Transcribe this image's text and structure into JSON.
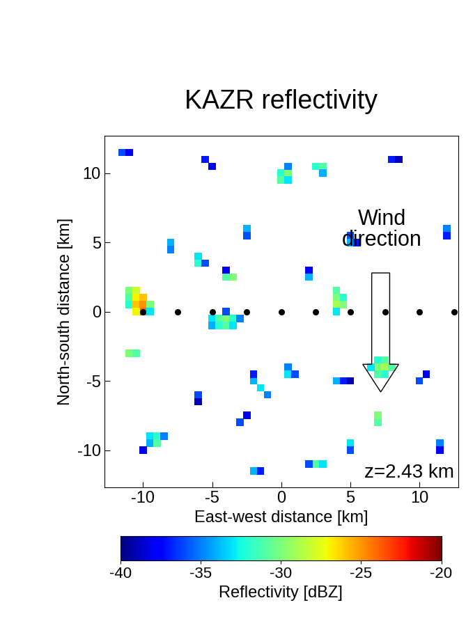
{
  "chart_data": {
    "type": "heatmap",
    "title": "KAZR reflectivity",
    "x_label": "East-west distance [km]",
    "y_label": "North-south distance [km]",
    "xlim": [
      -12.8,
      12.8
    ],
    "ylim": [
      -12.7,
      12.7
    ],
    "xticks": [
      -10,
      -5,
      0,
      5,
      10
    ],
    "yticks": [
      -10,
      -5,
      0,
      5,
      10
    ],
    "marker": "square",
    "cells": [
      [
        -11,
        1.5,
        -30
      ],
      [
        -10.5,
        1.5,
        -28
      ],
      [
        -11,
        1,
        -31
      ],
      [
        -10.5,
        1,
        -27
      ],
      [
        -10,
        1,
        -26
      ],
      [
        -11,
        0.5,
        -32
      ],
      [
        -10.5,
        0.5,
        -26
      ],
      [
        -10,
        0.5,
        -25
      ],
      [
        -10,
        0,
        -24
      ],
      [
        -10.5,
        0,
        -27
      ],
      [
        -9.5,
        0.5,
        -30
      ],
      [
        -9.5,
        0,
        -33
      ],
      [
        -5,
        -0.5,
        -33
      ],
      [
        -4.5,
        -0.5,
        -31
      ],
      [
        -4,
        -0.5,
        -30
      ],
      [
        -3.5,
        -0.5,
        -32
      ],
      [
        -3,
        -0.5,
        -35
      ],
      [
        -5,
        -1,
        -34
      ],
      [
        -4.5,
        -1,
        -32
      ],
      [
        -4,
        -1,
        -31
      ],
      [
        -3.5,
        -1,
        -33
      ],
      [
        -4,
        0,
        -36
      ],
      [
        4,
        1.5,
        -31
      ],
      [
        4,
        1,
        -30
      ],
      [
        4,
        0.5,
        -29
      ],
      [
        4.5,
        1,
        -32
      ],
      [
        4.5,
        0.5,
        -30
      ],
      [
        4,
        0,
        -33
      ],
      [
        7,
        -3.5,
        -32
      ],
      [
        7.5,
        -3.5,
        -31
      ],
      [
        7,
        -4,
        -30
      ],
      [
        7.5,
        -4,
        -29
      ],
      [
        8,
        -4,
        -31
      ],
      [
        7,
        -4.5,
        -31
      ],
      [
        7.5,
        -4.5,
        -32
      ],
      [
        6.5,
        -4,
        -33
      ],
      [
        -9.5,
        -9,
        -33
      ],
      [
        -9,
        -9,
        -32
      ],
      [
        -9.5,
        -9.5,
        -34
      ],
      [
        -9,
        -9.5,
        -31
      ],
      [
        -8.5,
        -9,
        -35
      ],
      [
        -10,
        -10,
        -38
      ],
      [
        0,
        10,
        -32
      ],
      [
        0.5,
        10,
        -30
      ],
      [
        0,
        9.5,
        -31
      ],
      [
        0.5,
        9.5,
        -33
      ],
      [
        0.5,
        10.5,
        -35
      ],
      [
        2.5,
        10.5,
        -32
      ],
      [
        3,
        10.5,
        -31
      ],
      [
        3,
        10,
        -34
      ],
      [
        -6,
        4,
        -33
      ],
      [
        -6,
        3.5,
        -32
      ],
      [
        -5.5,
        3.5,
        -36
      ],
      [
        -3.5,
        2.5,
        -30
      ],
      [
        -4,
        2.5,
        -31
      ],
      [
        -4,
        3,
        -38
      ],
      [
        -2,
        -5,
        -34
      ],
      [
        -1.5,
        -5.5,
        -33
      ],
      [
        -1,
        -6,
        -35
      ],
      [
        -2,
        -4.5,
        -37
      ],
      [
        4,
        -5,
        -34
      ],
      [
        4.5,
        -5,
        -37
      ],
      [
        5,
        -5,
        -39
      ],
      [
        0.5,
        -4,
        -35
      ],
      [
        0.5,
        -4.5,
        -33
      ],
      [
        1,
        -4.5,
        -36
      ],
      [
        -11.5,
        11.5,
        -36
      ],
      [
        -11,
        11.5,
        -38
      ],
      [
        -5.5,
        11,
        -37
      ],
      [
        -5,
        10.5,
        -38
      ],
      [
        5,
        5.5,
        -36
      ],
      [
        5,
        5,
        -34
      ],
      [
        5.5,
        5,
        -37
      ],
      [
        -3,
        -8,
        -36
      ],
      [
        -2.5,
        -7.5,
        -38
      ],
      [
        7,
        -8,
        -31
      ],
      [
        7,
        -7.5,
        -30
      ],
      [
        2.5,
        -11,
        -31
      ],
      [
        3,
        -11,
        -33
      ],
      [
        2,
        -11,
        -36
      ],
      [
        -2,
        -11.5,
        -34
      ],
      [
        -1.5,
        -11.5,
        -37
      ],
      [
        -6,
        -6,
        -36
      ],
      [
        -6,
        -6.5,
        -39
      ],
      [
        12,
        6,
        -35
      ],
      [
        12,
        5.5,
        -37
      ],
      [
        2,
        3,
        -38
      ],
      [
        2,
        2.5,
        -34
      ],
      [
        10,
        -5,
        -36
      ],
      [
        10.5,
        -4.5,
        -38
      ],
      [
        -8,
        5,
        -34
      ],
      [
        -8,
        4.5,
        -35
      ],
      [
        8,
        11,
        -37
      ],
      [
        8.5,
        11,
        -39
      ],
      [
        -11,
        -3,
        -30
      ],
      [
        -10.5,
        -3,
        -31
      ],
      [
        11.5,
        -9.5,
        -35
      ],
      [
        11.5,
        -10,
        -38
      ],
      [
        -2.5,
        6,
        -34
      ],
      [
        -2.5,
        5.5,
        -36
      ],
      [
        5,
        -9.5,
        -33
      ],
      [
        5,
        -10,
        -36
      ]
    ],
    "points": {
      "x": [
        -10,
        -7.5,
        -5,
        -2.5,
        0,
        2.5,
        5,
        7.5,
        10,
        12.5
      ],
      "y": [
        0,
        0,
        0,
        0,
        0,
        0,
        0,
        0,
        0,
        0
      ]
    },
    "annotations": [
      "Wind\ndirection",
      "z=2.43 km"
    ],
    "colorbar": {
      "label": "Reflectivity [dBZ]",
      "range": [
        -40,
        -20
      ],
      "ticks": [
        -40,
        -35,
        -30,
        -25,
        -20
      ]
    }
  }
}
